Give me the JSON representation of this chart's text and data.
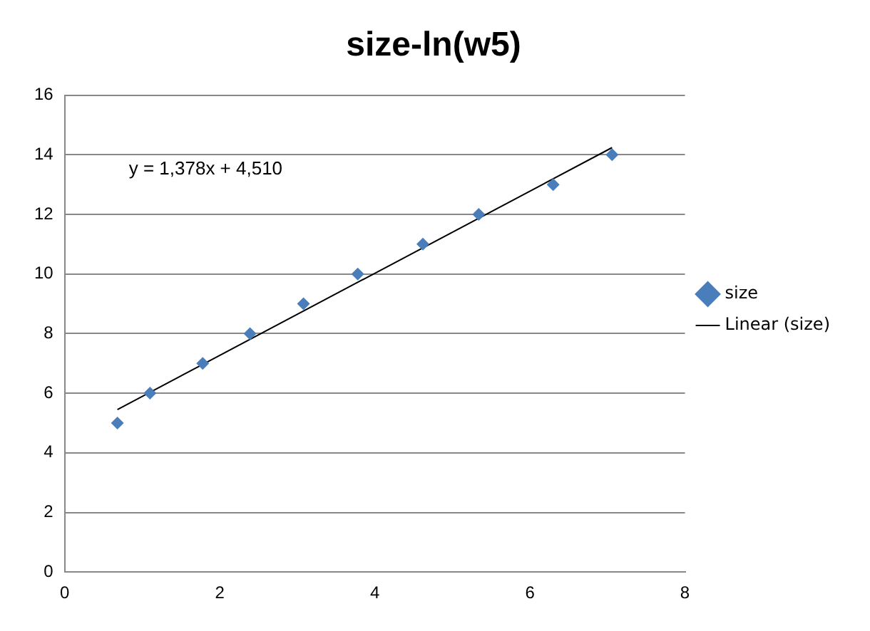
{
  "chart_data": {
    "type": "scatter",
    "title": "size-ln(w5)",
    "x": [
      0.68,
      1.1,
      1.78,
      2.39,
      3.08,
      3.78,
      4.62,
      5.34,
      6.3,
      7.06
    ],
    "series": [
      {
        "name": "size",
        "color": "#4a7ebb",
        "values": [
          5,
          6,
          7,
          8,
          9,
          10,
          11,
          12,
          13,
          14
        ],
        "marker": "diamond"
      },
      {
        "name": "Linear (size)",
        "type": "line",
        "color": "#000000",
        "x": [
          0.68,
          7.06
        ],
        "values": [
          5.45,
          14.24
        ],
        "marker": "none"
      }
    ],
    "xlim": [
      0,
      8
    ],
    "xticks": [
      0,
      2,
      4,
      6,
      8
    ],
    "ylim": [
      0,
      16
    ],
    "yticks": [
      0,
      2,
      4,
      6,
      8,
      10,
      12,
      14,
      16
    ],
    "grid": "y",
    "legend": "right",
    "annotations": [
      "y = 1,378x + 4,510"
    ]
  }
}
